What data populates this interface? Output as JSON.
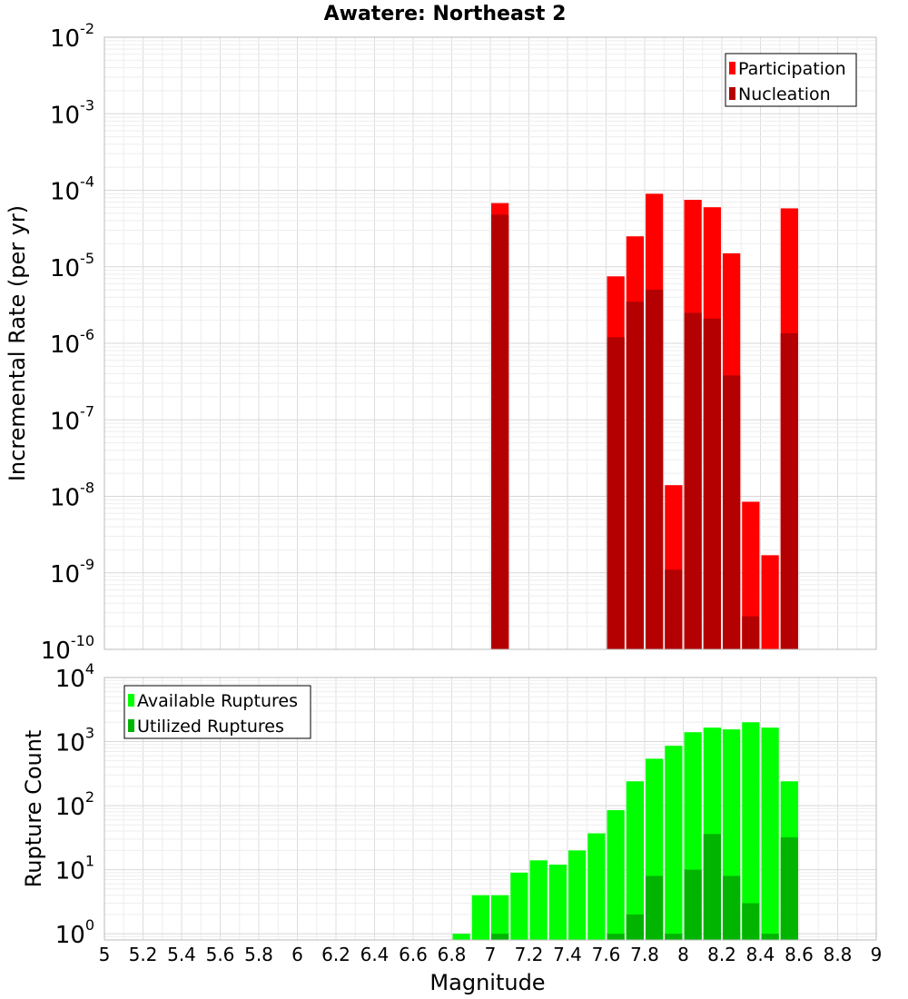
{
  "chart_data": [
    {
      "type": "bar",
      "title": "Awatere: Northeast 2",
      "ylabel": "Incremental Rate (per yr)",
      "xlabel": "",
      "xlim": [
        5,
        9
      ],
      "ylim": [
        1e-10,
        0.01
      ],
      "yscale": "log",
      "yticks": [
        {
          "base": "10",
          "exp": "-10"
        },
        {
          "base": "10",
          "exp": "-9"
        },
        {
          "base": "10",
          "exp": "-8"
        },
        {
          "base": "10",
          "exp": "-7"
        },
        {
          "base": "10",
          "exp": "-6"
        },
        {
          "base": "10",
          "exp": "-5"
        },
        {
          "base": "10",
          "exp": "-4"
        },
        {
          "base": "10",
          "exp": "-3"
        },
        {
          "base": "10",
          "exp": "-2"
        }
      ],
      "grid": true,
      "legend_position": "top-right",
      "series": [
        {
          "name": "Participation",
          "color": "#ff0000",
          "points": [
            {
              "x": 7.05,
              "y": 6.8e-05
            },
            {
              "x": 7.65,
              "y": 7.5e-06
            },
            {
              "x": 7.75,
              "y": 2.5e-05
            },
            {
              "x": 7.85,
              "y": 9e-05
            },
            {
              "x": 7.95,
              "y": 1.4e-08
            },
            {
              "x": 8.05,
              "y": 7.5e-05
            },
            {
              "x": 8.15,
              "y": 6e-05
            },
            {
              "x": 8.25,
              "y": 1.5e-05
            },
            {
              "x": 8.35,
              "y": 8.5e-09
            },
            {
              "x": 8.45,
              "y": 1.7e-09
            },
            {
              "x": 8.55,
              "y": 5.8e-05
            }
          ]
        },
        {
          "name": "Nucleation",
          "color": "#b40000",
          "points": [
            {
              "x": 7.05,
              "y": 4.8e-05
            },
            {
              "x": 7.65,
              "y": 1.2e-06
            },
            {
              "x": 7.75,
              "y": 3.5e-06
            },
            {
              "x": 7.85,
              "y": 5e-06
            },
            {
              "x": 7.95,
              "y": 1.1e-09
            },
            {
              "x": 8.05,
              "y": 2.5e-06
            },
            {
              "x": 8.15,
              "y": 2.1e-06
            },
            {
              "x": 8.25,
              "y": 3.8e-07
            },
            {
              "x": 8.35,
              "y": 2.7e-10
            },
            {
              "x": 8.55,
              "y": 1.35e-06
            }
          ]
        }
      ]
    },
    {
      "type": "bar",
      "title": "",
      "ylabel": "Rupture Count",
      "xlabel": "Magnitude",
      "xlim": [
        5,
        9
      ],
      "ylim": [
        0.8,
        10000
      ],
      "yscale": "log",
      "yticks": [
        {
          "base": "10",
          "exp": "0"
        },
        {
          "base": "10",
          "exp": "1"
        },
        {
          "base": "10",
          "exp": "2"
        },
        {
          "base": "10",
          "exp": "3"
        },
        {
          "base": "10",
          "exp": "4"
        }
      ],
      "xticks": [
        "5",
        "5.2",
        "5.4",
        "5.6",
        "5.8",
        "6",
        "6.2",
        "6.4",
        "6.6",
        "6.8",
        "7",
        "7.2",
        "7.4",
        "7.6",
        "7.8",
        "8",
        "8.2",
        "8.4",
        "8.6",
        "8.8",
        "9"
      ],
      "grid": true,
      "legend_position": "top-left",
      "series": [
        {
          "name": "Available Ruptures",
          "color": "#00ff00",
          "points": [
            {
              "x": 6.85,
              "y": 1
            },
            {
              "x": 6.95,
              "y": 4
            },
            {
              "x": 7.05,
              "y": 4
            },
            {
              "x": 7.15,
              "y": 9
            },
            {
              "x": 7.25,
              "y": 14
            },
            {
              "x": 7.35,
              "y": 12
            },
            {
              "x": 7.45,
              "y": 20
            },
            {
              "x": 7.55,
              "y": 37
            },
            {
              "x": 7.65,
              "y": 85
            },
            {
              "x": 7.75,
              "y": 240
            },
            {
              "x": 7.85,
              "y": 540
            },
            {
              "x": 7.95,
              "y": 860
            },
            {
              "x": 8.05,
              "y": 1400
            },
            {
              "x": 8.15,
              "y": 1650
            },
            {
              "x": 8.25,
              "y": 1550
            },
            {
              "x": 8.35,
              "y": 2000
            },
            {
              "x": 8.45,
              "y": 1650
            },
            {
              "x": 8.55,
              "y": 240
            }
          ]
        },
        {
          "name": "Utilized Ruptures",
          "color": "#00b400",
          "points": [
            {
              "x": 7.05,
              "y": 1
            },
            {
              "x": 7.65,
              "y": 1
            },
            {
              "x": 7.75,
              "y": 2
            },
            {
              "x": 7.85,
              "y": 8
            },
            {
              "x": 7.95,
              "y": 1
            },
            {
              "x": 8.05,
              "y": 10
            },
            {
              "x": 8.15,
              "y": 36
            },
            {
              "x": 8.25,
              "y": 8
            },
            {
              "x": 8.35,
              "y": 3
            },
            {
              "x": 8.45,
              "y": 1
            },
            {
              "x": 8.55,
              "y": 32
            }
          ]
        }
      ]
    }
  ]
}
